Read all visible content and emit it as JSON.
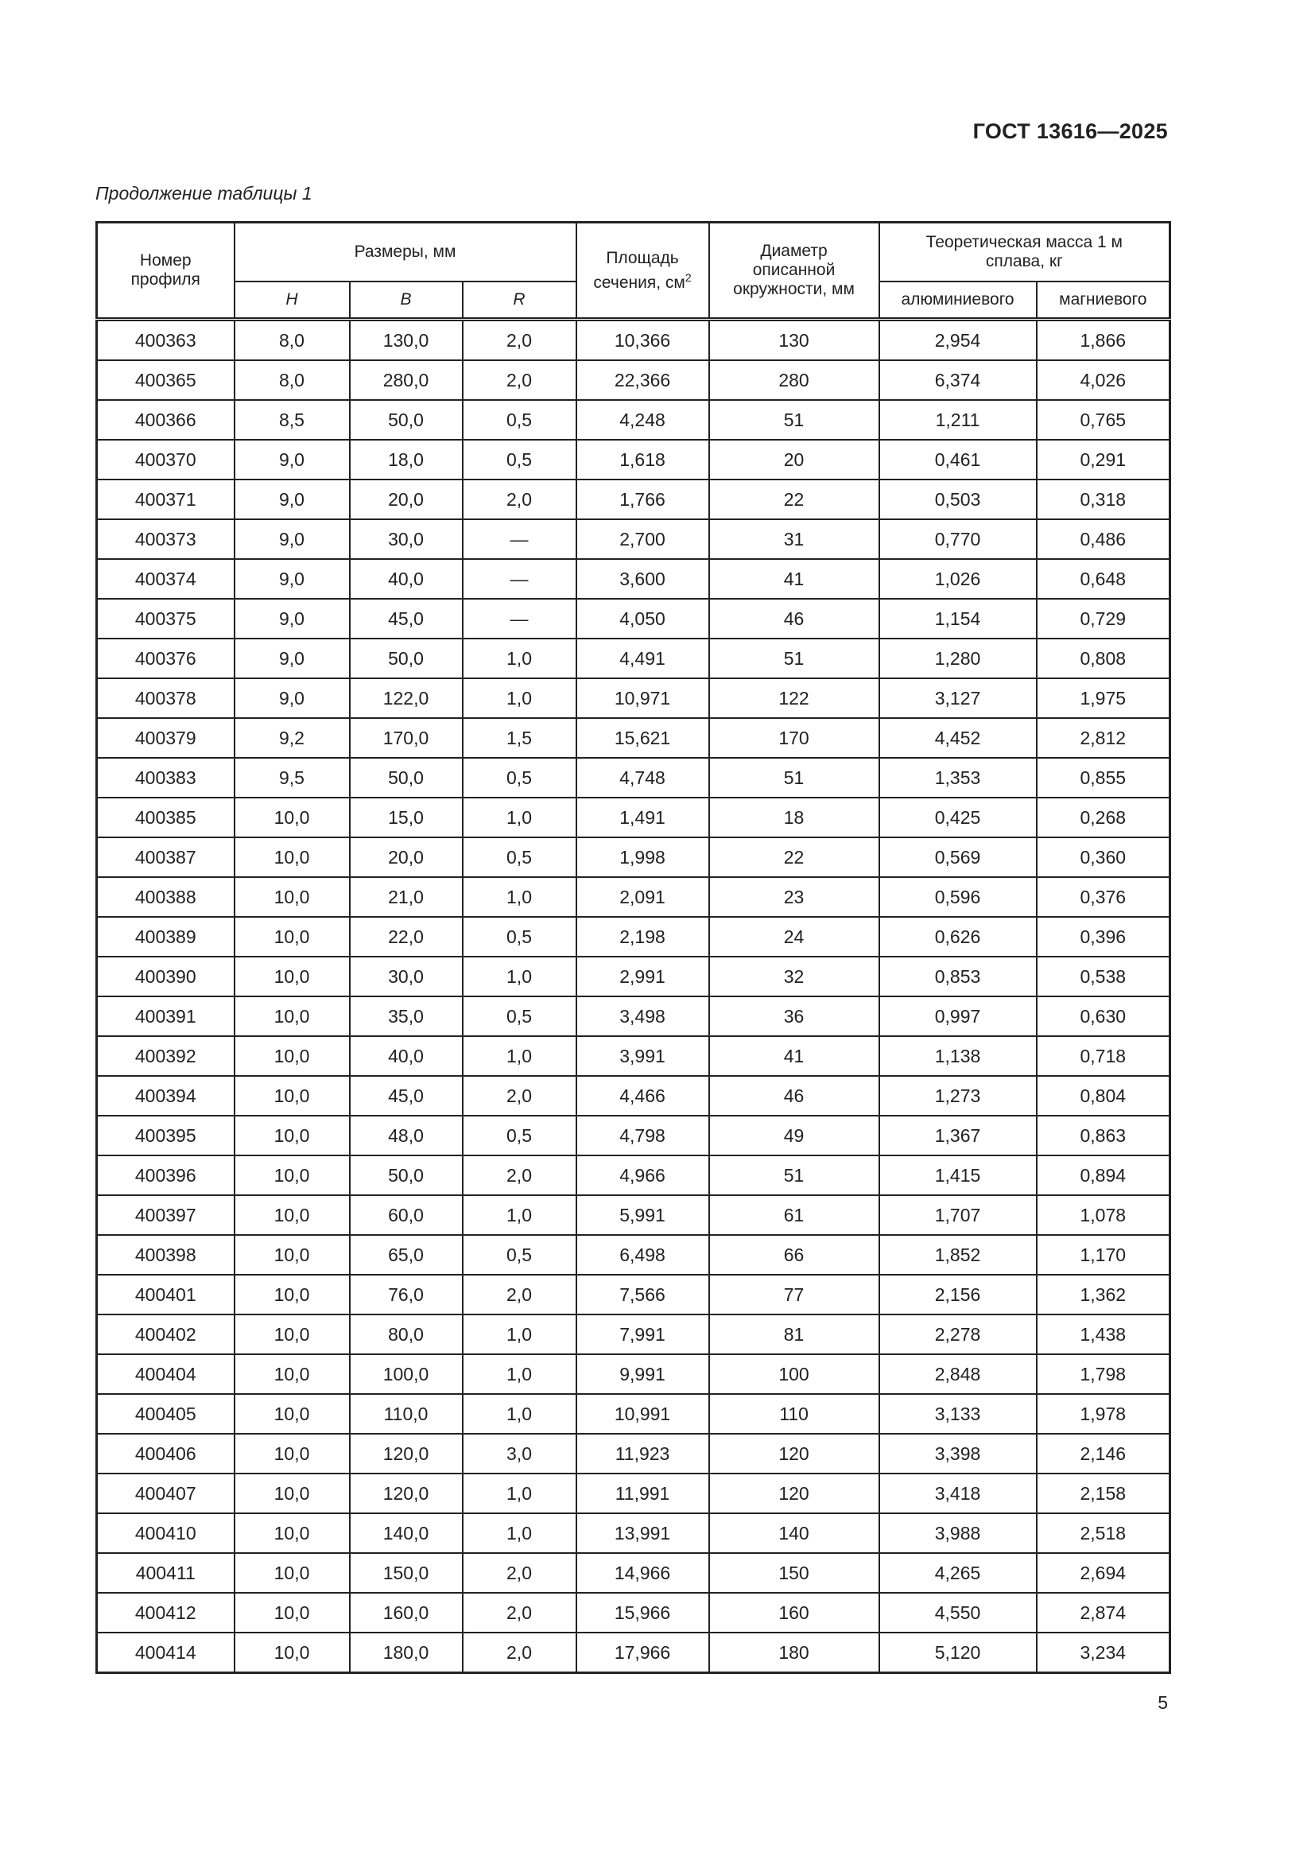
{
  "header": {
    "doc_code": "ГОСТ 13616—2025"
  },
  "caption": "Продолжение таблицы 1",
  "page_number": "5",
  "table": {
    "headers": {
      "profile_number": "Номер профиля",
      "dimensions": "Размеры, мм",
      "H": "H",
      "B": "B",
      "R": "R",
      "area": "Площадь сечения, см",
      "area_sup": "2",
      "diameter": "Диаметр описанной окружности, мм",
      "mass": "Теоретическая масса 1 м сплава, кг",
      "aluminum": "алюминиевого",
      "magnesium": "магниевого"
    },
    "rows": [
      [
        "400363",
        "8,0",
        "130,0",
        "2,0",
        "10,366",
        "130",
        "2,954",
        "1,866"
      ],
      [
        "400365",
        "8,0",
        "280,0",
        "2,0",
        "22,366",
        "280",
        "6,374",
        "4,026"
      ],
      [
        "400366",
        "8,5",
        "50,0",
        "0,5",
        "4,248",
        "51",
        "1,211",
        "0,765"
      ],
      [
        "400370",
        "9,0",
        "18,0",
        "0,5",
        "1,618",
        "20",
        "0,461",
        "0,291"
      ],
      [
        "400371",
        "9,0",
        "20,0",
        "2,0",
        "1,766",
        "22",
        "0,503",
        "0,318"
      ],
      [
        "400373",
        "9,0",
        "30,0",
        "—",
        "2,700",
        "31",
        "0,770",
        "0,486"
      ],
      [
        "400374",
        "9,0",
        "40,0",
        "—",
        "3,600",
        "41",
        "1,026",
        "0,648"
      ],
      [
        "400375",
        "9,0",
        "45,0",
        "—",
        "4,050",
        "46",
        "1,154",
        "0,729"
      ],
      [
        "400376",
        "9,0",
        "50,0",
        "1,0",
        "4,491",
        "51",
        "1,280",
        "0,808"
      ],
      [
        "400378",
        "9,0",
        "122,0",
        "1,0",
        "10,971",
        "122",
        "3,127",
        "1,975"
      ],
      [
        "400379",
        "9,2",
        "170,0",
        "1,5",
        "15,621",
        "170",
        "4,452",
        "2,812"
      ],
      [
        "400383",
        "9,5",
        "50,0",
        "0,5",
        "4,748",
        "51",
        "1,353",
        "0,855"
      ],
      [
        "400385",
        "10,0",
        "15,0",
        "1,0",
        "1,491",
        "18",
        "0,425",
        "0,268"
      ],
      [
        "400387",
        "10,0",
        "20,0",
        "0,5",
        "1,998",
        "22",
        "0,569",
        "0,360"
      ],
      [
        "400388",
        "10,0",
        "21,0",
        "1,0",
        "2,091",
        "23",
        "0,596",
        "0,376"
      ],
      [
        "400389",
        "10,0",
        "22,0",
        "0,5",
        "2,198",
        "24",
        "0,626",
        "0,396"
      ],
      [
        "400390",
        "10,0",
        "30,0",
        "1,0",
        "2,991",
        "32",
        "0,853",
        "0,538"
      ],
      [
        "400391",
        "10,0",
        "35,0",
        "0,5",
        "3,498",
        "36",
        "0,997",
        "0,630"
      ],
      [
        "400392",
        "10,0",
        "40,0",
        "1,0",
        "3,991",
        "41",
        "1,138",
        "0,718"
      ],
      [
        "400394",
        "10,0",
        "45,0",
        "2,0",
        "4,466",
        "46",
        "1,273",
        "0,804"
      ],
      [
        "400395",
        "10,0",
        "48,0",
        "0,5",
        "4,798",
        "49",
        "1,367",
        "0,863"
      ],
      [
        "400396",
        "10,0",
        "50,0",
        "2,0",
        "4,966",
        "51",
        "1,415",
        "0,894"
      ],
      [
        "400397",
        "10,0",
        "60,0",
        "1,0",
        "5,991",
        "61",
        "1,707",
        "1,078"
      ],
      [
        "400398",
        "10,0",
        "65,0",
        "0,5",
        "6,498",
        "66",
        "1,852",
        "1,170"
      ],
      [
        "400401",
        "10,0",
        "76,0",
        "2,0",
        "7,566",
        "77",
        "2,156",
        "1,362"
      ],
      [
        "400402",
        "10,0",
        "80,0",
        "1,0",
        "7,991",
        "81",
        "2,278",
        "1,438"
      ],
      [
        "400404",
        "10,0",
        "100,0",
        "1,0",
        "9,991",
        "100",
        "2,848",
        "1,798"
      ],
      [
        "400405",
        "10,0",
        "110,0",
        "1,0",
        "10,991",
        "110",
        "3,133",
        "1,978"
      ],
      [
        "400406",
        "10,0",
        "120,0",
        "3,0",
        "11,923",
        "120",
        "3,398",
        "2,146"
      ],
      [
        "400407",
        "10,0",
        "120,0",
        "1,0",
        "11,991",
        "120",
        "3,418",
        "2,158"
      ],
      [
        "400410",
        "10,0",
        "140,0",
        "1,0",
        "13,991",
        "140",
        "3,988",
        "2,518"
      ],
      [
        "400411",
        "10,0",
        "150,0",
        "2,0",
        "14,966",
        "150",
        "4,265",
        "2,694"
      ],
      [
        "400412",
        "10,0",
        "160,0",
        "2,0",
        "15,966",
        "160",
        "4,550",
        "2,874"
      ],
      [
        "400414",
        "10,0",
        "180,0",
        "2,0",
        "17,966",
        "180",
        "5,120",
        "3,234"
      ]
    ]
  }
}
